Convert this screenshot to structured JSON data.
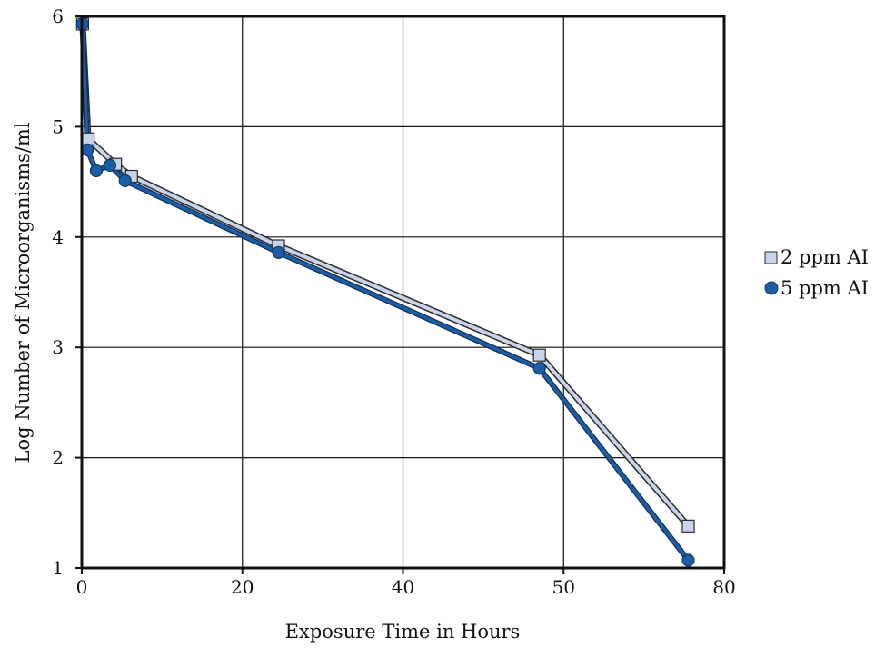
{
  "chart_data": {
    "type": "line",
    "xlabel": "Exposure Time in Hours",
    "ylabel": "Log Number of Microorganisms/ml",
    "x_ticks": [
      "0",
      "20",
      "40",
      "50",
      "80"
    ],
    "y_ticks": [
      "1",
      "2",
      "3",
      "4",
      "5",
      "6"
    ],
    "grid": true,
    "legend_position": "right",
    "series": [
      {
        "name": "2 ppm AI",
        "marker": "square",
        "color": "#c9d4ea",
        "points": [
          {
            "x": 0.1,
            "y": 5.93
          },
          {
            "x": 0.8,
            "y": 4.89
          },
          {
            "x": 4.2,
            "y": 4.66
          },
          {
            "x": 6.2,
            "y": 4.55
          },
          {
            "x": 24.5,
            "y": 3.92
          },
          {
            "x": 48.5,
            "y": 2.93
          },
          {
            "x": 73.3,
            "y": 1.38
          }
        ]
      },
      {
        "name": "5 ppm AI",
        "marker": "circle",
        "color": "#1c5ea6",
        "points": [
          {
            "x": 0.1,
            "y": 5.93
          },
          {
            "x": 0.7,
            "y": 4.79
          },
          {
            "x": 1.8,
            "y": 4.6
          },
          {
            "x": 3.5,
            "y": 4.65
          },
          {
            "x": 5.4,
            "y": 4.51
          },
          {
            "x": 24.5,
            "y": 3.86
          },
          {
            "x": 48.5,
            "y": 2.81
          },
          {
            "x": 73.3,
            "y": 1.07
          }
        ]
      }
    ]
  }
}
